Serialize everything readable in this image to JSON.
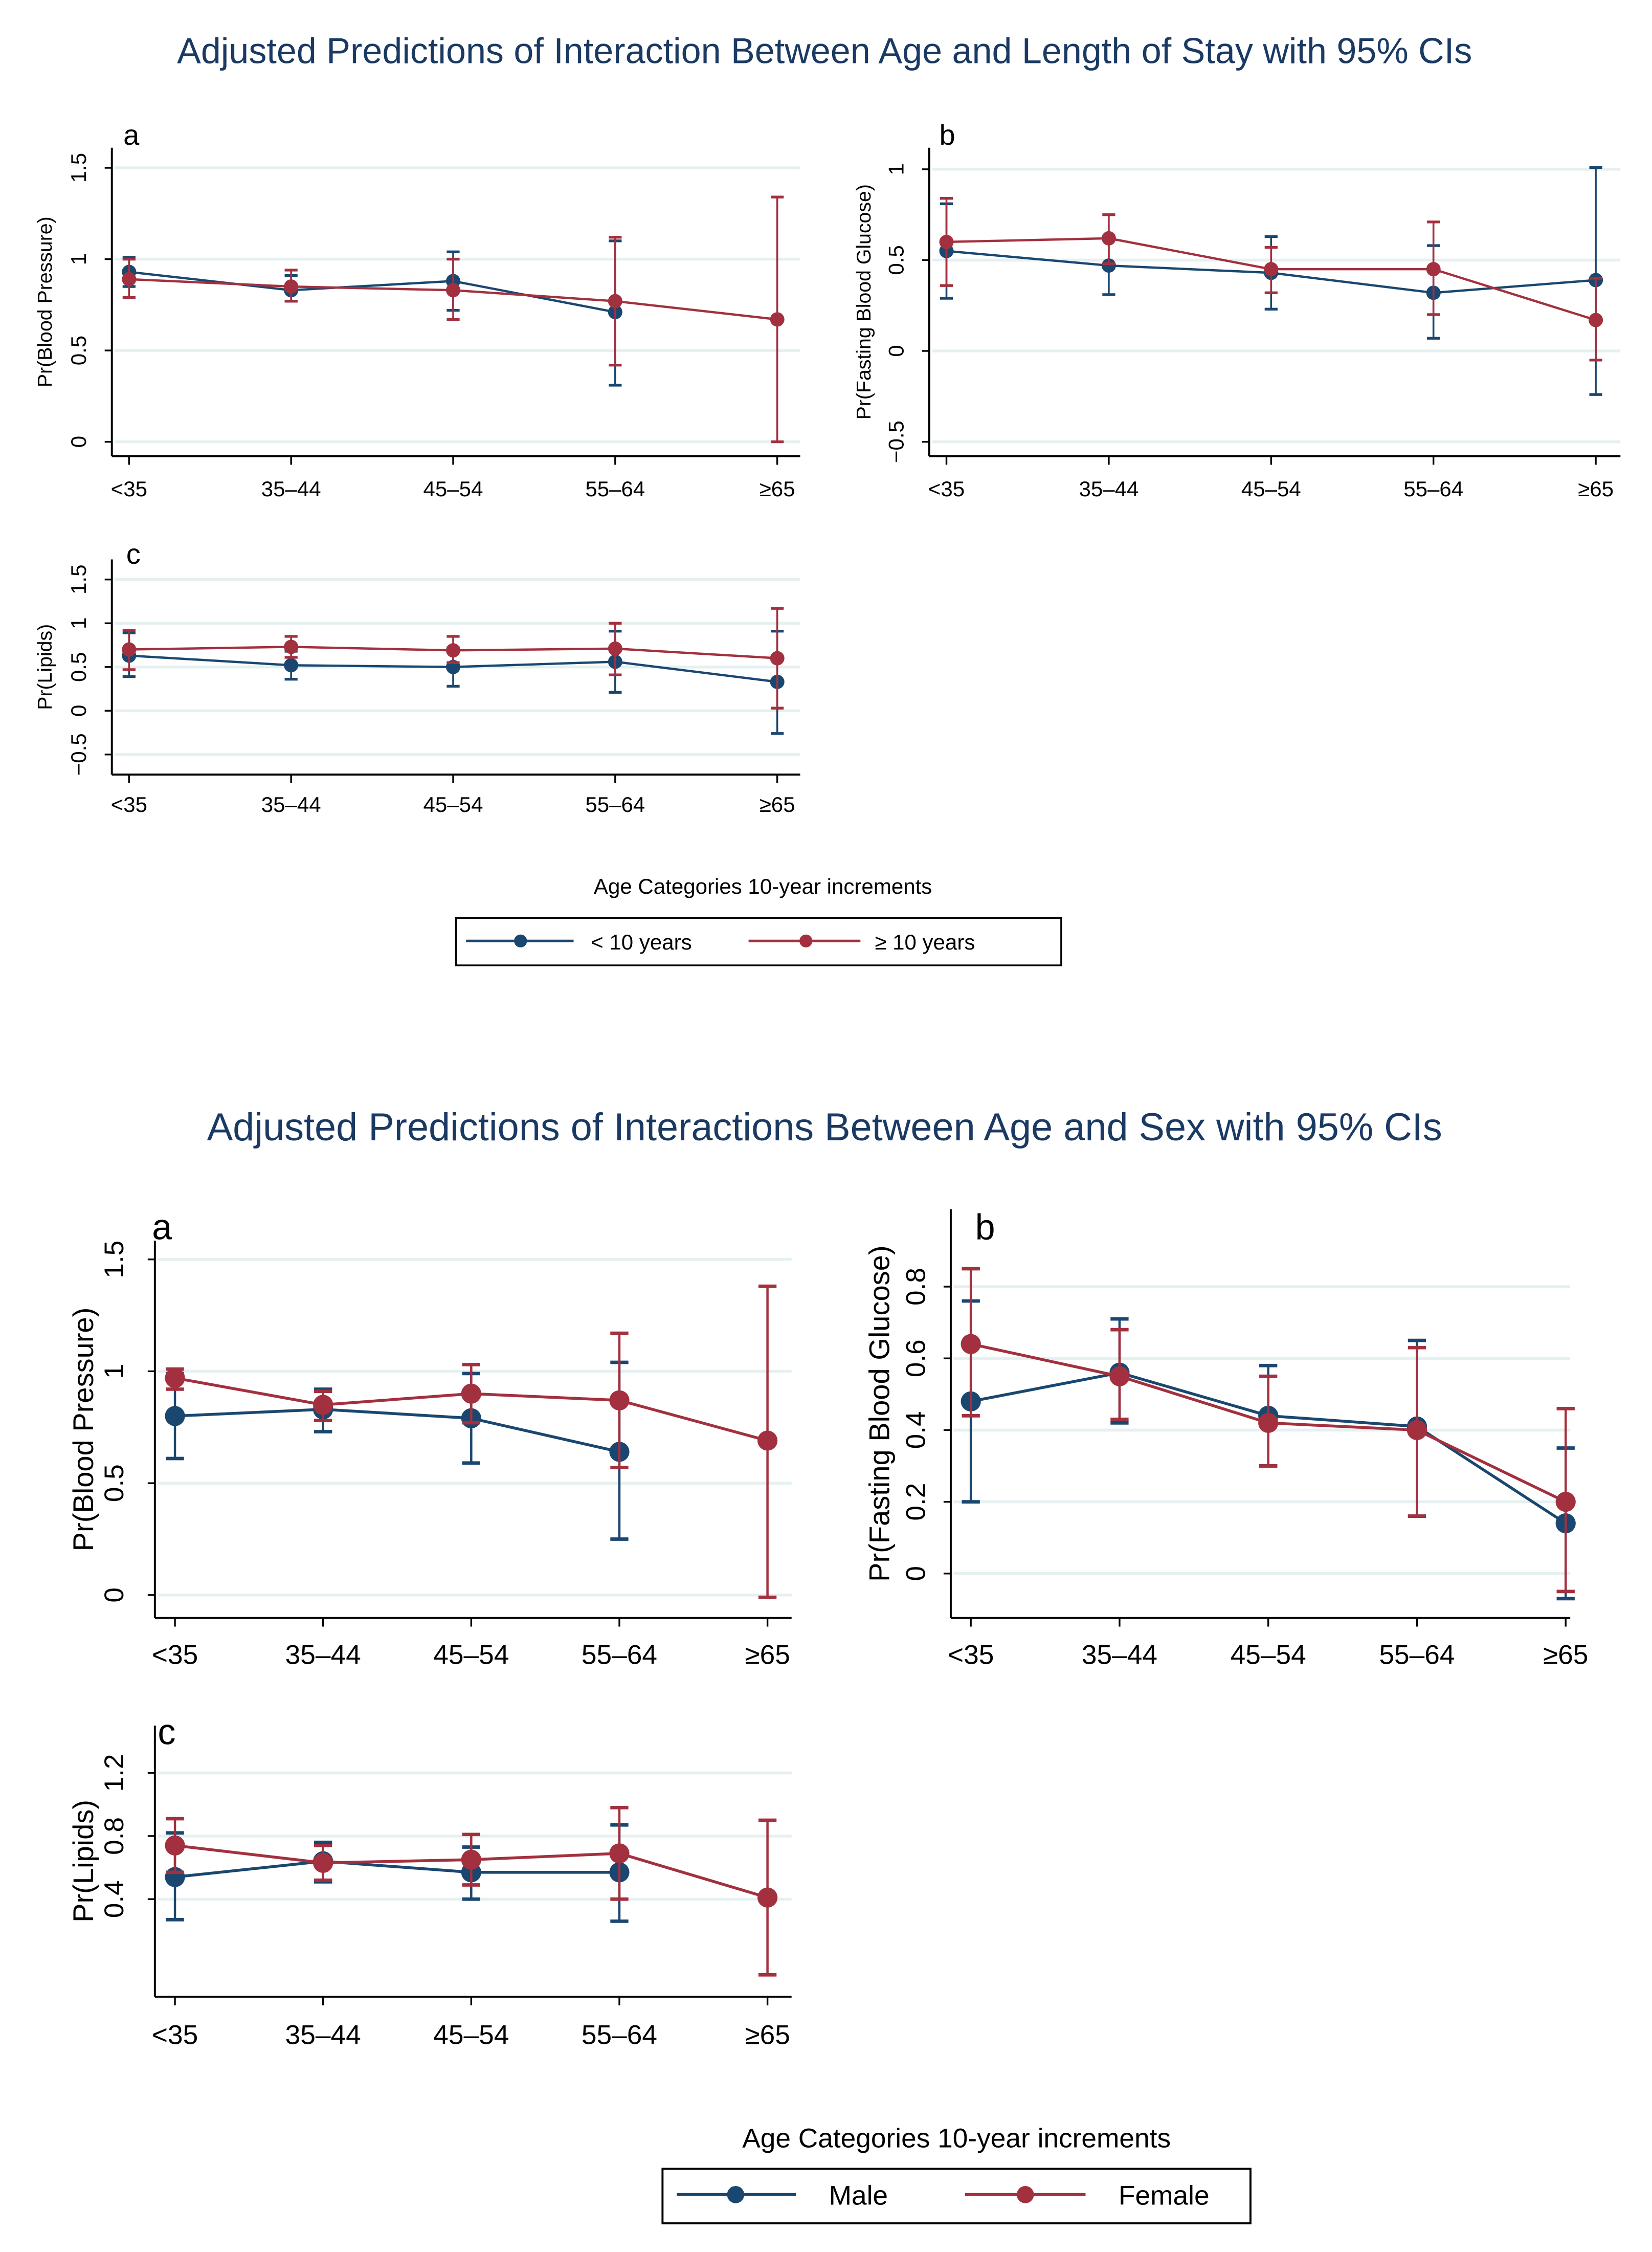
{
  "figure1": {
    "title": "Adjusted Predictions of Interaction Between Age and Length of Stay with 95% CIs",
    "xlabel": "Age Categories 10-year increments",
    "legend": [
      {
        "label": "< 10 years",
        "color": "#1a476f"
      },
      {
        "label": "≥ 10 years",
        "color": "#a3303e"
      }
    ]
  },
  "figure2": {
    "title": "Adjusted Predictions of Interactions Between Age and Sex with 95% CIs",
    "xlabel": "Age Categories 10-year increments",
    "legend": [
      {
        "label": "Male",
        "color": "#1a476f"
      },
      {
        "label": "Female",
        "color": "#a3303e"
      }
    ]
  },
  "chart_data": [
    {
      "type": "line",
      "figure": 1,
      "panel_label": "a",
      "ylabel": "Pr(Blood Pressure)",
      "categories": [
        "<35",
        "35–44",
        "45–54",
        "55–64",
        "≥65"
      ],
      "yticks": [
        0,
        0.5,
        1,
        1.5
      ],
      "ytick_labels": [
        "0",
        "0.5",
        "1",
        "1.5"
      ],
      "ylim": [
        -0.1,
        1.6
      ],
      "grid": true,
      "series": [
        {
          "name": "< 10 years",
          "color": "#1a476f",
          "values": [
            0.93,
            0.83,
            0.88,
            0.71,
            null
          ],
          "ci_low": [
            0.85,
            0.77,
            0.72,
            0.31,
            null
          ],
          "ci_high": [
            1.01,
            0.91,
            1.04,
            1.1,
            null
          ]
        },
        {
          "name": "≥ 10 years",
          "color": "#a3303e",
          "values": [
            0.89,
            0.85,
            0.83,
            0.77,
            0.67
          ],
          "ci_low": [
            0.79,
            0.77,
            0.67,
            0.42,
            0.0
          ],
          "ci_high": [
            1.0,
            0.94,
            1.0,
            1.12,
            1.34
          ]
        }
      ]
    },
    {
      "type": "line",
      "figure": 1,
      "panel_label": "b",
      "ylabel": "Pr(Fasting Blood Glucose)",
      "categories": [
        "<35",
        "35–44",
        "45–54",
        "55–64",
        "≥65"
      ],
      "yticks": [
        -0.5,
        0,
        0.5,
        1
      ],
      "ytick_labels": [
        "−0.5",
        "0",
        "0.5",
        "1"
      ],
      "ylim": [
        -0.6,
        1.1
      ],
      "grid": true,
      "series": [
        {
          "name": "< 10 years",
          "color": "#1a476f",
          "values": [
            0.55,
            0.47,
            0.43,
            0.32,
            0.39
          ],
          "ci_low": [
            0.29,
            0.31,
            0.23,
            0.07,
            -0.24
          ],
          "ci_high": [
            0.81,
            0.63,
            0.63,
            0.58,
            1.01
          ]
        },
        {
          "name": "≥ 10 years",
          "color": "#a3303e",
          "values": [
            0.6,
            0.62,
            0.45,
            0.45,
            0.17
          ],
          "ci_low": [
            0.36,
            0.48,
            0.32,
            0.2,
            -0.05
          ],
          "ci_high": [
            0.84,
            0.75,
            0.57,
            0.71,
            0.4
          ]
        }
      ]
    },
    {
      "type": "line",
      "figure": 1,
      "panel_label": "c",
      "ylabel": "Pr(Lipids)",
      "categories": [
        "<35",
        "35–44",
        "45–54",
        "55–64",
        "≥65"
      ],
      "yticks": [
        -0.5,
        0,
        0.5,
        1,
        1.5
      ],
      "ytick_labels": [
        "−0.5",
        "0",
        "0.5",
        "1",
        "1.5"
      ],
      "ylim": [
        -0.7,
        1.7
      ],
      "grid": true,
      "series": [
        {
          "name": "< 10 years",
          "color": "#1a476f",
          "values": [
            0.63,
            0.52,
            0.5,
            0.56,
            0.33
          ],
          "ci_low": [
            0.39,
            0.36,
            0.28,
            0.21,
            -0.26
          ],
          "ci_high": [
            0.89,
            0.68,
            0.72,
            0.91,
            0.91
          ]
        },
        {
          "name": "≥ 10 years",
          "color": "#a3303e",
          "values": [
            0.7,
            0.73,
            0.69,
            0.71,
            0.6
          ],
          "ci_low": [
            0.47,
            0.61,
            0.55,
            0.41,
            0.03
          ],
          "ci_high": [
            0.92,
            0.85,
            0.85,
            1.0,
            1.17
          ]
        }
      ]
    },
    {
      "type": "line",
      "figure": 2,
      "panel_label": "a",
      "ylabel": "Pr(Blood Pressure)",
      "categories": [
        "<35",
        "35–44",
        "45–54",
        "55–64",
        "≥65"
      ],
      "yticks": [
        0,
        0.5,
        1,
        1.5
      ],
      "ytick_labels": [
        "0",
        "0.5",
        "1",
        "1.5"
      ],
      "ylim": [
        -0.1,
        1.6
      ],
      "grid": true,
      "series": [
        {
          "name": "Male",
          "color": "#1a476f",
          "values": [
            0.8,
            0.83,
            0.79,
            0.64,
            null
          ],
          "ci_low": [
            0.61,
            0.73,
            0.59,
            0.25,
            null
          ],
          "ci_high": [
            0.99,
            0.92,
            0.99,
            1.04,
            null
          ]
        },
        {
          "name": "Female",
          "color": "#a3303e",
          "values": [
            0.97,
            0.85,
            0.9,
            0.87,
            0.69
          ],
          "ci_low": [
            0.92,
            0.78,
            0.77,
            0.57,
            -0.01
          ],
          "ci_high": [
            1.01,
            0.91,
            1.03,
            1.17,
            1.38
          ]
        }
      ]
    },
    {
      "type": "line",
      "figure": 2,
      "panel_label": "b",
      "ylabel": "Pr(Fasting Blood Glucose)",
      "categories": [
        "<35",
        "35–44",
        "45–54",
        "55–64",
        "≥65"
      ],
      "yticks": [
        0,
        0.2,
        0.4,
        0.6,
        0.8
      ],
      "ytick_labels": [
        "0",
        "0.2",
        "0.4",
        "0.6",
        "0.8"
      ],
      "ylim": [
        -0.12,
        0.9
      ],
      "grid": true,
      "series": [
        {
          "name": "Male",
          "color": "#1a476f",
          "values": [
            0.48,
            0.56,
            0.44,
            0.41,
            0.14
          ],
          "ci_low": [
            0.2,
            0.42,
            0.3,
            0.16,
            -0.07
          ],
          "ci_high": [
            0.76,
            0.71,
            0.58,
            0.65,
            0.35
          ]
        },
        {
          "name": "Female",
          "color": "#a3303e",
          "values": [
            0.64,
            0.55,
            0.42,
            0.4,
            0.2
          ],
          "ci_low": [
            0.44,
            0.43,
            0.3,
            0.16,
            -0.05
          ],
          "ci_high": [
            0.85,
            0.68,
            0.55,
            0.63,
            0.46
          ]
        }
      ]
    },
    {
      "type": "line",
      "figure": 2,
      "panel_label": "c",
      "ylabel": "Pr(Lipids)",
      "categories": [
        "<35",
        "35–44",
        "45–54",
        "55–64",
        "≥65"
      ],
      "yticks": [
        0.4,
        0.8,
        1.2
      ],
      "ytick_labels": [
        "0.4",
        "0.8",
        "1.2"
      ],
      "ylim": [
        -0.22,
        1.33
      ],
      "grid": true,
      "series": [
        {
          "name": "Male",
          "color": "#1a476f",
          "values": [
            0.54,
            0.64,
            0.57,
            0.57,
            null
          ],
          "ci_low": [
            0.27,
            0.51,
            0.4,
            0.26,
            null
          ],
          "ci_high": [
            0.82,
            0.76,
            0.73,
            0.87,
            null
          ]
        },
        {
          "name": "Female",
          "color": "#a3303e",
          "values": [
            0.74,
            0.63,
            0.65,
            0.69,
            0.41
          ],
          "ci_low": [
            0.57,
            0.52,
            0.49,
            0.4,
            -0.08
          ],
          "ci_high": [
            0.91,
            0.74,
            0.81,
            0.98,
            0.9
          ]
        }
      ]
    }
  ]
}
